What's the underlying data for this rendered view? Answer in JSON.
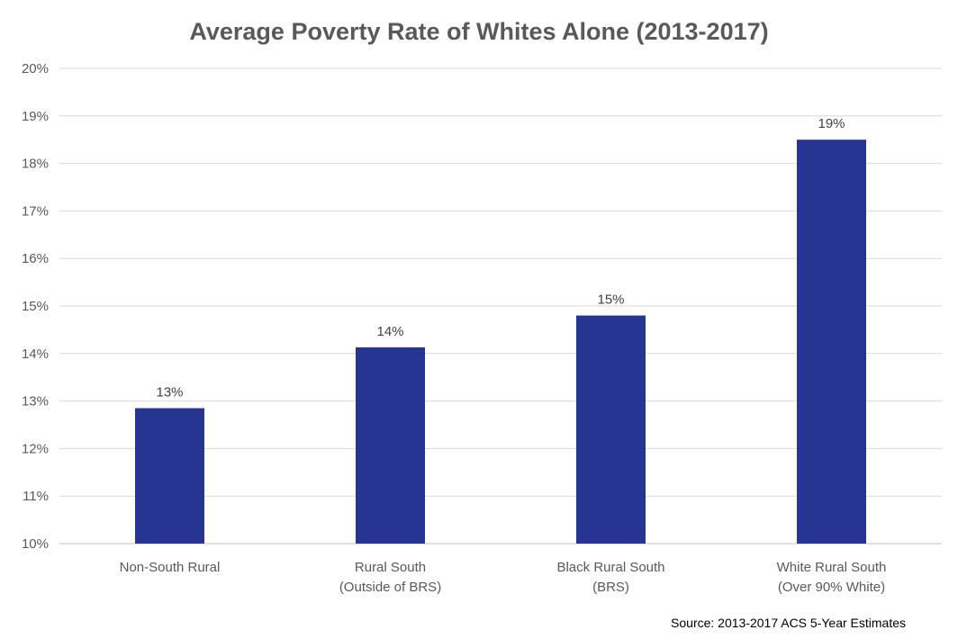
{
  "chart_data": {
    "type": "bar",
    "title": "Average Poverty Rate of Whites Alone (2013-2017)",
    "categories": [
      [
        "Non-South Rural"
      ],
      [
        "Rural South",
        "(Outside of BRS)"
      ],
      [
        "Black Rural South",
        "(BRS)"
      ],
      [
        "White Rural South",
        "(Over 90% White)"
      ]
    ],
    "values": [
      12.85,
      14.13,
      14.8,
      18.5
    ],
    "data_labels": [
      "13%",
      "14%",
      "15%",
      "19%"
    ],
    "ylim": [
      10,
      20
    ],
    "y_ticks": [
      10,
      11,
      12,
      13,
      14,
      15,
      16,
      17,
      18,
      19,
      20
    ],
    "y_tick_labels": [
      "10%",
      "11%",
      "12%",
      "13%",
      "14%",
      "15%",
      "16%",
      "17%",
      "18%",
      "19%",
      "20%"
    ],
    "grid": true,
    "legend": "none",
    "bar_color": "#263591",
    "source": "Source: 2013-2017 ACS 5-Year Estimates"
  }
}
